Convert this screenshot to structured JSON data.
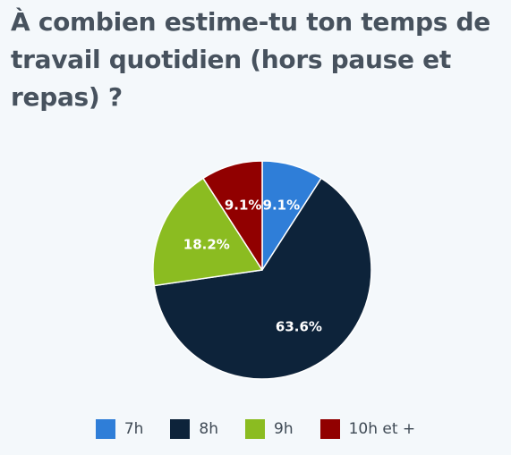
{
  "chart_data": {
    "type": "pie",
    "title": "À combien estime-tu ton temps de travail quotidien (hors pause et repas) ?",
    "categories": [
      "7h",
      "8h",
      "9h",
      "10h et +"
    ],
    "values": [
      9.1,
      63.6,
      18.2,
      9.1
    ],
    "labels": [
      "9.1%",
      "63.6%",
      "18.2%",
      "9.1%"
    ],
    "colors": [
      "#2f7ed8",
      "#0d233a",
      "#8bbc21",
      "#910000"
    ],
    "legend_position": "bottom",
    "start": "top",
    "direction": "clockwise"
  }
}
